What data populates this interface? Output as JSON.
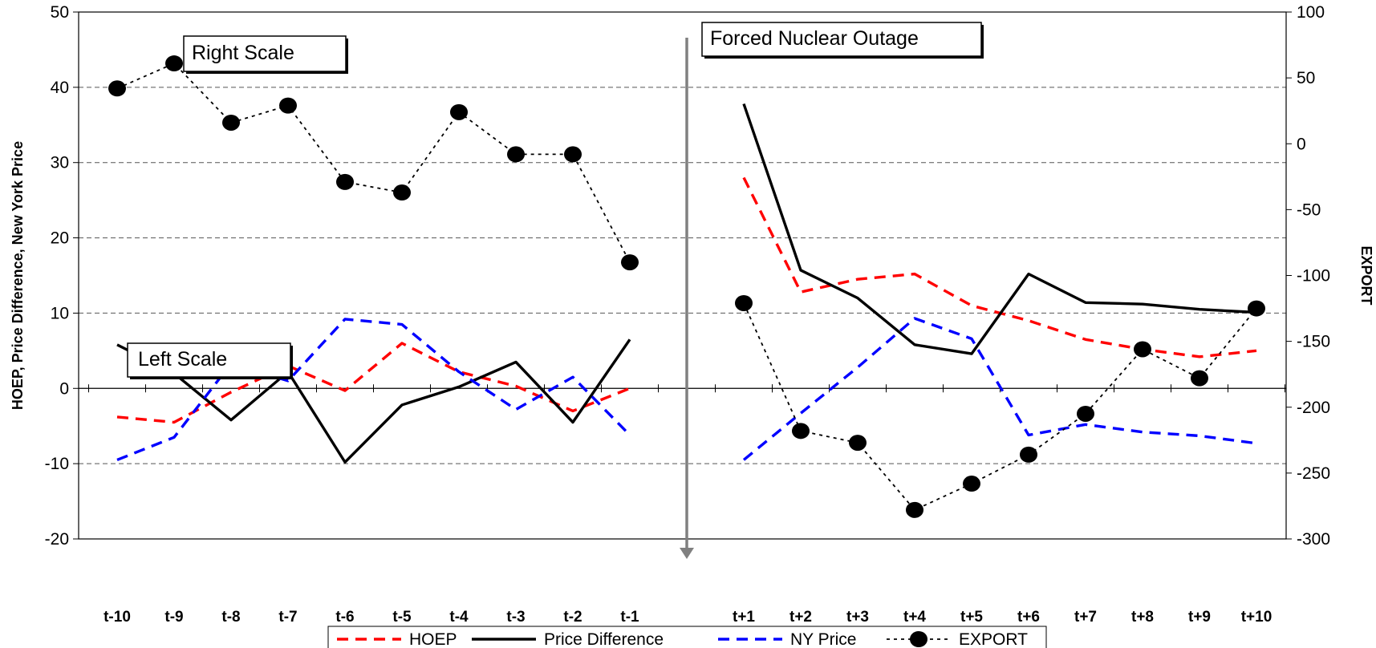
{
  "chart_data": {
    "type": "line",
    "categories": [
      "t-10",
      "t-9",
      "t-8",
      "t-7",
      "t-6",
      "t-5",
      "t-4",
      "t-3",
      "t-2",
      "t-1",
      "t+1",
      "t+2",
      "t+3",
      "t+4",
      "t+5",
      "t+6",
      "t+7",
      "t+8",
      "t+9",
      "t+10"
    ],
    "left_axis": {
      "label": "HOEP, Price Difference, New York Price",
      "min": -20,
      "max": 50,
      "step": 10
    },
    "right_axis": {
      "label": "EXPORT",
      "min": -300,
      "max": 100,
      "step": 50
    },
    "grid": true,
    "legend_position": "bottom",
    "series": [
      {
        "name": "HOEP",
        "axis": "left",
        "color": "#ff0000",
        "style": "dashed",
        "marker": "none",
        "values": [
          -3.8,
          -4.5,
          -0.5,
          3.0,
          -0.3,
          6.0,
          2.2,
          0.3,
          -3.0,
          0.0,
          28.0,
          12.8,
          14.5,
          15.2,
          11.0,
          9.0,
          6.5,
          5.2,
          4.2,
          5.0
        ]
      },
      {
        "name": "Price Difference",
        "axis": "left",
        "color": "#000000",
        "style": "solid",
        "marker": "none",
        "values": [
          5.8,
          2.0,
          -4.2,
          2.2,
          -9.8,
          -2.2,
          0.2,
          3.5,
          -4.5,
          6.5,
          37.8,
          15.7,
          12.0,
          5.8,
          4.6,
          15.2,
          11.4,
          11.2,
          10.5,
          10.1
        ]
      },
      {
        "name": "NY Price",
        "axis": "left",
        "color": "#0000ff",
        "style": "dashed",
        "marker": "none",
        "values": [
          -9.5,
          -6.5,
          3.3,
          1.0,
          9.2,
          8.5,
          2.2,
          -2.8,
          1.5,
          -6.2,
          -9.5,
          -3.3,
          2.8,
          9.3,
          6.6,
          -6.2,
          -4.8,
          -5.8,
          -6.3,
          -7.3
        ]
      },
      {
        "name": "EXPORT",
        "axis": "right",
        "color": "#000000",
        "style": "dotted",
        "marker": "circle",
        "values": [
          42,
          61,
          16,
          29,
          -29,
          -37,
          24,
          -8,
          -8,
          -90,
          -121,
          -218,
          -227,
          -278,
          -258,
          -236,
          -205,
          -156,
          -178,
          -125
        ]
      }
    ],
    "annotations": [
      {
        "text": "Right Scale"
      },
      {
        "text": "Left Scale"
      },
      {
        "text": "Forced Nuclear Outage"
      }
    ]
  }
}
